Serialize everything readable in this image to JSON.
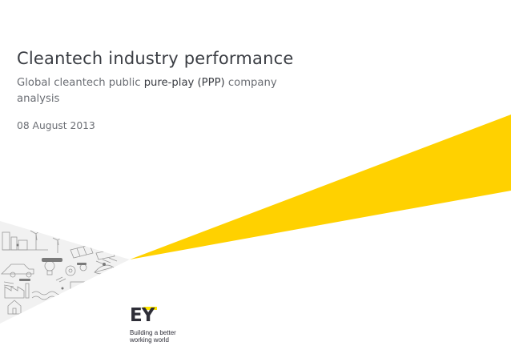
{
  "title": "Cleantech industry performance",
  "subtitle": {
    "part1": "Global cleantech public ",
    "part2": "pure-play (PPP)",
    "part3": " company analysis"
  },
  "date": "08 August 2013",
  "logo": {
    "mark": "EY",
    "tagline_line1": "Building a better",
    "tagline_line2": "working world"
  },
  "colors": {
    "beam_yellow": "#ffd100",
    "logo_bar_yellow": "#ffe600",
    "text_dark": "#3a3d43",
    "text_grey": "#6b6e74"
  }
}
